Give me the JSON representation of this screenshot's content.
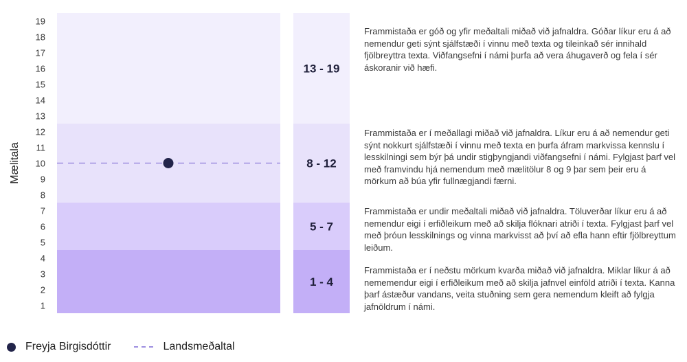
{
  "chart_data": {
    "type": "band",
    "ylabel": "Mælitala",
    "yticks": [
      1,
      2,
      3,
      4,
      5,
      6,
      7,
      8,
      9,
      10,
      11,
      12,
      13,
      14,
      15,
      16,
      17,
      18,
      19
    ],
    "ylim": [
      0.5,
      19.5
    ],
    "bands": [
      {
        "label": "13 - 19",
        "low": 13,
        "high": 19,
        "color": "#f2effd",
        "description": "Frammistaða er góð og yfir meðaltali miðað við jafnaldra. Góðar líkur eru á að nemendur geti sýnt  sjálfstæði í vinnu með texta og tileinkað sér innihald fjölbreyttra texta. Viðfangsefni í námi þurfa að vera áhugaverð og fela í sér áskoranir við hæfi."
      },
      {
        "label": "8 - 12",
        "low": 8,
        "high": 12,
        "color": "#e8e2fb",
        "description": "Frammistaða er í meðallagi miðað við jafnaldra. Líkur eru á að nemendur geti sýnt nokkurt sjálfstæði í vinnu með texta en þurfa áfram markvissa kennslu í lesskilningi sem býr þá undir stigþyngjandi viðfangsefni í námi. Fylgjast þarf vel með framvindu hjá nemendum  með mælitölur 8 og 9  þar sem þeir eru á mörkum að búa yfir fullnægjandi færni."
      },
      {
        "label": "5 - 7",
        "low": 5,
        "high": 7,
        "color": "#d9ccfb",
        "description": "Frammistaða er undir meðaltali miðað við jafnaldra. Töluverðar líkur eru á að nemendur eigi í erfiðleikum með að skilja flóknari atriði í texta. Fylgjast þarf vel með þróun lesskilnings og vinna markvisst að því að efla hann eftir fjölbreyttum leiðum."
      },
      {
        "label": "1 - 4",
        "low": 1,
        "high": 4,
        "color": "#c3aff7",
        "description": "Frammistaða er í neðstu mörkum kvarða miðað við jafnaldra. Miklar líkur á að nememendur eigi í erfiðleikum með að skilja jafnvel einföld atriði í texta. Kanna þarf ástæður vandans, veita stuðning sem gera nemendum kleift að fylgja jafnöldrum í námi."
      }
    ],
    "series": [
      {
        "name": "Freyja Birgisdóttir",
        "type": "point",
        "value": 10,
        "color": "#22244a"
      },
      {
        "name": "Landsmeðaltal",
        "type": "dashed-line",
        "value": 10,
        "color": "#9d8ee0"
      }
    ],
    "legend": "bottom-left"
  }
}
